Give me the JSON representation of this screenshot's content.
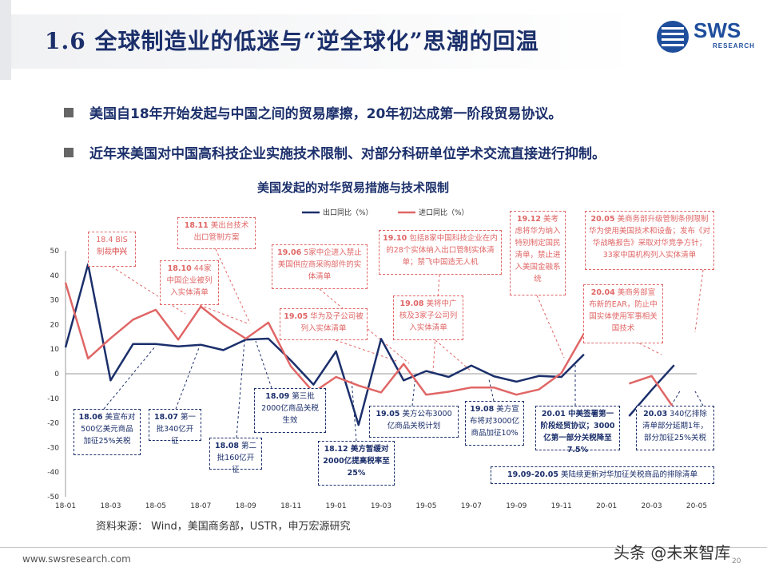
{
  "header": {
    "title": "1.6 全球制造业的低迷与“逆全球化”思潮的回温",
    "logo_text": "SWS",
    "logo_sub": "RESEARCH"
  },
  "bullets": [
    "美国自18年开始发起与中国之间的贸易摩擦，20年初达成第一阶段贸易协议。",
    "近年来美国对中国高科技企业实施技术限制、对部分科研单位学术交流直接进行抑制。"
  ],
  "chart_data": {
    "type": "line",
    "title": "美国发起的对华贸易措施与技术限制",
    "x": [
      "18-01",
      "18-02",
      "18-03",
      "18-04",
      "18-05",
      "18-06",
      "18-07",
      "18-08",
      "18-09",
      "18-10",
      "18-11",
      "18-12",
      "19-01",
      "19-02",
      "19-03",
      "19-04",
      "19-05",
      "19-06",
      "19-07",
      "19-08",
      "19-09",
      "19-10",
      "19-11",
      "19-12",
      "20-01",
      "20-02",
      "20-03",
      "20-04",
      "20-05"
    ],
    "x_tick_labels": [
      "18-01",
      "18-03",
      "18-05",
      "18-07",
      "18-09",
      "18-11",
      "19-01",
      "19-03",
      "19-05",
      "19-07",
      "19-09",
      "19-11",
      "20-01",
      "20-03",
      "20-05"
    ],
    "ylim": [
      -50,
      50
    ],
    "y_ticks": [
      50,
      40,
      30,
      20,
      10,
      0,
      -10,
      -20,
      -30,
      -40,
      -50
    ],
    "legend_position": "top-center",
    "series": [
      {
        "name": "出口同比（%）",
        "color": "#1b2f6b",
        "values": [
          10.7,
          44.5,
          -2.7,
          12.1,
          12.1,
          11.1,
          11.8,
          9.6,
          13.9,
          14.3,
          5.4,
          -4.4,
          9.1,
          -20.8,
          14.2,
          -2.7,
          1.1,
          -1.3,
          3.3,
          -1.0,
          -3.2,
          -0.9,
          -1.3,
          7.9,
          null,
          -17.2,
          -6.6,
          3.5,
          null
        ]
      },
      {
        "name": "进口同比（%）",
        "color": "#e06666",
        "values": [
          37.0,
          6.2,
          14.4,
          22.0,
          26.0,
          13.9,
          27.3,
          20.1,
          14.3,
          20.8,
          3.0,
          -7.5,
          -1.3,
          -4.8,
          -7.6,
          4.0,
          -8.5,
          -7.3,
          -5.6,
          -5.6,
          -8.5,
          -6.4,
          0.3,
          16.3,
          null,
          -4.0,
          -0.9,
          -14.2,
          null
        ]
      }
    ]
  },
  "annotations": {
    "a1804": {
      "date": "18.4",
      "text_a": " BIS",
      "text_b": "制裁",
      "text_c": "中兴"
    },
    "a1811": {
      "date": "18.11",
      "text": " 美出台技术出口管制方案"
    },
    "a1810": {
      "date": "18.10",
      "text": " 44家中国企业被列入实体清单"
    },
    "a1906": {
      "date": "19.06",
      "text": " 5家中企进入禁止美国供应商采购部件的实体清单"
    },
    "a1905": {
      "date": "19.05",
      "text": " 华为及子公司被列入实体清单"
    },
    "a1910": {
      "date": "19.10",
      "text": " 包括8家中国科技企业在内的28个实体纳入出口管制实体清单；禁飞中国造无人机"
    },
    "a1908r": {
      "date": "19.08",
      "text": " 美将中广核及3家子公司列入实体清单"
    },
    "a1912": {
      "date": "19.12",
      "text": " 美考虑将华为纳入特别制定国民清单，禁止进入美国金融系统"
    },
    "a2005": {
      "date": "20.05",
      "text": " 美商务部升级管制条例限制华为使用美国技术和设备；发布《对华战略报告》采取对华竞争方针；33家中国机构列入实体清单"
    },
    "a2004": {
      "date": "20.04",
      "text": " 美商务部宣布新的EAR，防止中国实体使用军事相关国技术"
    },
    "a1806": {
      "date": "18.06",
      "text": " 美宣布对500亿美元商品加征25%关税"
    },
    "a1807": {
      "date": "18.07",
      "text": " 第一批340亿开征"
    },
    "a1808": {
      "date": "18.08",
      "text": " 第二批160亿开征"
    },
    "a1809": {
      "date": "18.09",
      "text": " 第三批2000亿商品关税生效"
    },
    "a1812": {
      "date": "18.12",
      "text": " 美方暂缓对2000亿提高税率至25%"
    },
    "a1905b": {
      "date": "19.05",
      "text": " 美方公布3000亿商品关税计划"
    },
    "a1908b": {
      "date": "19.08",
      "text": " 美方宣布将对3000亿商品加征10%"
    },
    "a2001": {
      "date": "20.01",
      "text": " 中美签署第一阶段经贸协议；3000亿第一部分关税降至7.5%"
    },
    "a2003": {
      "date": "20.03",
      "text": " 340亿排除清单部分延期1年，部分加征25%关税"
    },
    "a1909": {
      "date": "19.09-20.05",
      "text": " 美陆续更新对华加征关税商品的排除清单"
    }
  },
  "source": "资料来源： Wind，美国商务部，USTR，申万宏源研究",
  "footer": {
    "url": "www.swsresearch.com",
    "page": "20",
    "watermark": "头条 @未来智库"
  }
}
